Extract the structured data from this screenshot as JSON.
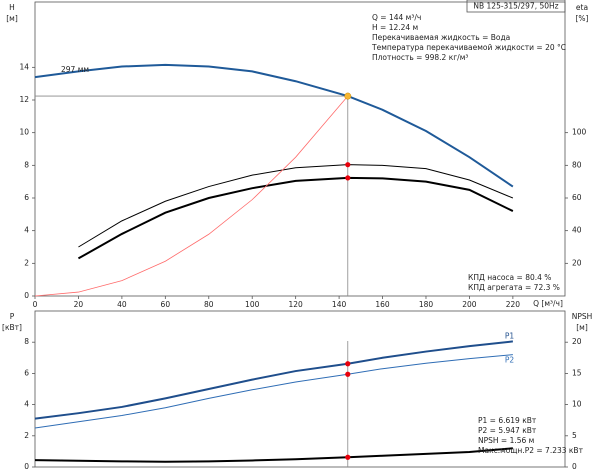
{
  "chart_data": [
    {
      "type": "line",
      "title": "NB 125-315/297, 50Hz",
      "y_label": "H",
      "y_unit": "[м]",
      "y2_label": "eta",
      "y2_unit": "[%]",
      "x_label": "Q [м³/ч]",
      "x": [
        0,
        20,
        40,
        60,
        80,
        100,
        120,
        144,
        160,
        180,
        200,
        220
      ],
      "xlim": [
        0,
        244
      ],
      "xticks": [
        0,
        20,
        40,
        60,
        80,
        100,
        120,
        140,
        160,
        180,
        200,
        220
      ],
      "ylim": [
        0,
        18
      ],
      "yticks": [
        0,
        2,
        4,
        6,
        8,
        10,
        12,
        14
      ],
      "y2lim": [
        0,
        180
      ],
      "y2ticks": [
        20,
        40,
        60,
        80,
        100
      ],
      "series": [
        {
          "name": "297 мм",
          "color": "#1f5a99",
          "values": [
            13.4,
            13.75,
            14.05,
            14.15,
            14.05,
            13.75,
            13.15,
            12.24,
            11.4,
            10.1,
            8.5,
            6.7
          ]
        },
        {
          "color": "#000000",
          "axis": "y2",
          "values": [
            null,
            30,
            46,
            58,
            67,
            74,
            78.5,
            80.4,
            80,
            78,
            71,
            60
          ]
        },
        {
          "color": "#000000",
          "axis": "y2",
          "values": [
            null,
            23,
            38,
            51,
            60,
            66,
            70.5,
            72.3,
            72,
            70,
            65,
            52
          ]
        },
        {
          "color": "#ff6b6b",
          "values": [
            0,
            0.24,
            0.94,
            2.13,
            3.78,
            5.9,
            8.5,
            12.24,
            null,
            null,
            null,
            null
          ]
        }
      ],
      "operating_point": {
        "x": 144,
        "y": 12.24,
        "color": "#f7b733"
      },
      "marker_color": "#e8000b",
      "annotations": [
        [
          "Q = 144 м³/ч",
          "H = 12.24 м",
          "Перекачиваемая жидкость = Вода",
          "Температура перекачиваемой жидкости = 20 °C",
          "Плотность = 998.2 кг/м³"
        ],
        [
          "КПД насоса = 80.4 %",
          "КПД агрегата = 72.3 %"
        ]
      ]
    },
    {
      "type": "line",
      "y_label": "P",
      "y_unit": "[кВт]",
      "y2_label": "NPSH",
      "y2_unit": "[м]",
      "x": [
        0,
        20,
        40,
        60,
        80,
        100,
        120,
        144,
        160,
        180,
        200,
        220
      ],
      "xlim": [
        0,
        244
      ],
      "ylim": [
        0,
        10
      ],
      "yticks": [
        0,
        2,
        4,
        6,
        8
      ],
      "y2lim": [
        0,
        25
      ],
      "y2ticks": [
        0,
        5,
        10,
        15,
        20
      ],
      "series": [
        {
          "name": "P1",
          "color": "#1f4e8c",
          "values": [
            3.1,
            3.45,
            3.85,
            4.4,
            5.0,
            5.6,
            6.15,
            6.619,
            7.0,
            7.4,
            7.75,
            8.05
          ]
        },
        {
          "name": "P2",
          "color": "#2f6db5",
          "values": [
            2.5,
            2.9,
            3.3,
            3.8,
            4.4,
            4.95,
            5.45,
            5.947,
            6.3,
            6.65,
            6.95,
            7.2
          ]
        },
        {
          "color": "#000000",
          "axis": "y2",
          "values": [
            1.1,
            1.0,
            0.9,
            0.85,
            0.9,
            1.05,
            1.25,
            1.56,
            1.8,
            2.1,
            2.4,
            3.0
          ]
        }
      ],
      "marker_color": "#e8000b",
      "annotations": [
        [
          "P1 = 6.619 кВт",
          "P2 = 5.947 кВт",
          "NPSH = 1.56 м",
          "Макс.мощн.P2 = 7.233 кВт"
        ]
      ]
    }
  ]
}
